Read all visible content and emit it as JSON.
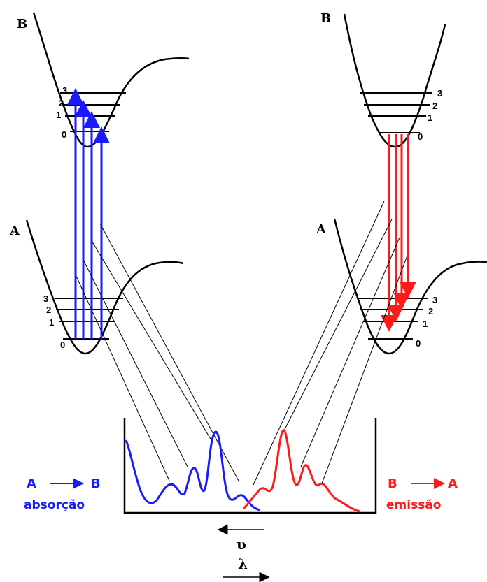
{
  "colors": {
    "absorption": "#1a1aff",
    "emission": "#ff1a1a",
    "line": "#000000"
  },
  "left": {
    "upper_label": "B",
    "lower_label": "A",
    "upper_levels": [
      "3",
      "2",
      "1",
      "0"
    ],
    "lower_levels": [
      "3",
      "2",
      "1",
      "0"
    ]
  },
  "right": {
    "upper_label": "B",
    "lower_label": "A",
    "upper_levels": [
      "3",
      "2",
      "1",
      "0"
    ],
    "lower_levels": [
      "3",
      "2",
      "1",
      "0"
    ]
  },
  "absorption": {
    "transition_A": "A",
    "transition_B": "B",
    "caption": "absorção"
  },
  "emission": {
    "transition_B": "B",
    "transition_A": "A",
    "caption": "emissão"
  },
  "axis": {
    "nu_symbol": "υ",
    "lambda_symbol": "λ"
  }
}
